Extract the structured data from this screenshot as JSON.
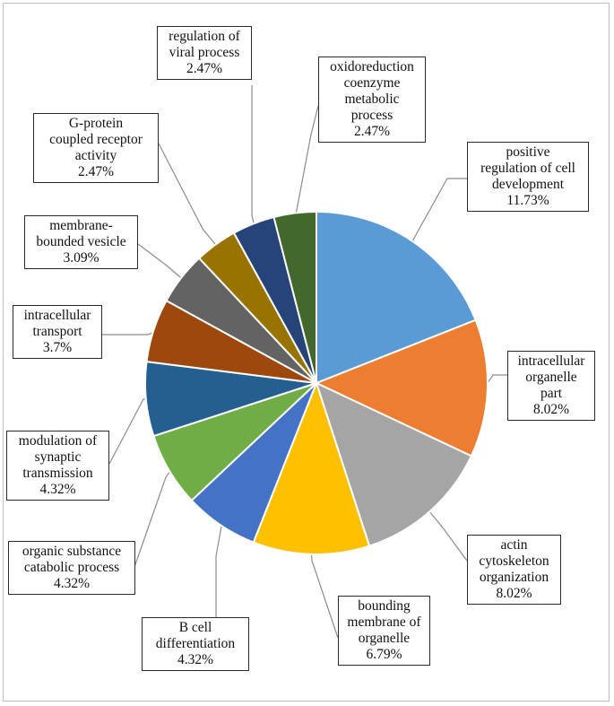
{
  "chart_data": {
    "type": "pie",
    "title": "",
    "slices": [
      {
        "label_lines": [
          "positive",
          "regulation of cell",
          "development"
        ],
        "label": "positive regulation of cell development",
        "percent": "11.73%",
        "value": 11.73,
        "color": "#5b9bd5"
      },
      {
        "label_lines": [
          "intracellular",
          "organelle part"
        ],
        "label": "intracellular organelle part",
        "percent": "8.02%",
        "value": 8.02,
        "color": "#ed7d31"
      },
      {
        "label_lines": [
          "actin",
          "cytoskeleton",
          "organization"
        ],
        "label": "actin cytoskeleton organization",
        "percent": "8.02%",
        "value": 8.02,
        "color": "#a5a5a5"
      },
      {
        "label_lines": [
          "bounding",
          "membrane of",
          "organelle"
        ],
        "label": "bounding membrane of organelle",
        "percent": "6.79%",
        "value": 6.79,
        "color": "#ffc000"
      },
      {
        "label_lines": [
          "B cell",
          "differentiation"
        ],
        "label": "B cell differentiation",
        "percent": "4.32%",
        "value": 4.32,
        "color": "#4472c4"
      },
      {
        "label_lines": [
          "organic substance",
          "catabolic process"
        ],
        "label": "organic substance catabolic process",
        "percent": "4.32%",
        "value": 4.32,
        "color": "#70ad47"
      },
      {
        "label_lines": [
          "modulation of",
          "synaptic",
          "transmission"
        ],
        "label": "modulation of synaptic transmission",
        "percent": "4.32%",
        "value": 4.32,
        "color": "#255e91"
      },
      {
        "label_lines": [
          "intracellular",
          "transport"
        ],
        "label": "intracellular transport",
        "percent": "3.7%",
        "value": 3.7,
        "color": "#9e480e"
      },
      {
        "label_lines": [
          "membrane-",
          "bounded vesicle"
        ],
        "label": "membrane-bounded vesicle",
        "percent": "3.09%",
        "value": 3.09,
        "color": "#636363"
      },
      {
        "label_lines": [
          "G-protein",
          "coupled receptor",
          "activity"
        ],
        "label": "G-protein coupled receptor activity",
        "percent": "2.47%",
        "value": 2.47,
        "color": "#997300"
      },
      {
        "label_lines": [
          "regulation of",
          "viral process"
        ],
        "label": "regulation of viral process",
        "percent": "2.47%",
        "value": 2.47,
        "color": "#264478"
      },
      {
        "label_lines": [
          "oxidoreduction",
          "coenzyme",
          "metabolic",
          "process"
        ],
        "label": "oxidoreduction coenzyme metabolic process",
        "percent": "2.47%",
        "value": 2.47,
        "color": "#43682b"
      }
    ]
  }
}
